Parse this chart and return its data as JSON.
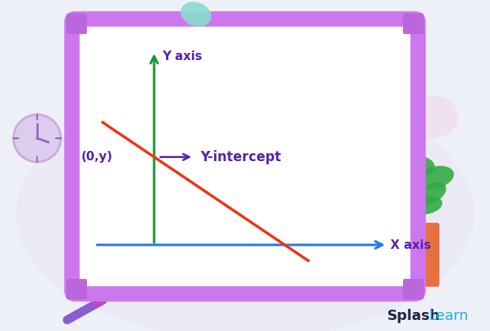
{
  "panel_bg": "#ffffff",
  "panel_border_color": "#cc77ee",
  "x_axis_color": "#2277ee",
  "y_axis_color": "#119933",
  "line_color": "#ee3311",
  "annotation_color": "#5522aa",
  "x_label": "X axis",
  "y_label": "Y axis",
  "intercept_label": "Y-intercept",
  "point_label": "(0,y)",
  "outer_bg": "#eef0f8",
  "blob_color": "#e8e0f8",
  "corner_color": "#bb66dd",
  "splashlearn_splash": "Splash",
  "splashlearn_learn": "Learn",
  "squiggle_color": "#88ddcc",
  "clock_color": "#ddccee",
  "pink_blob_color": "#f0d8e8",
  "marker_color1": "#cc44bb",
  "marker_color2": "#7744cc"
}
